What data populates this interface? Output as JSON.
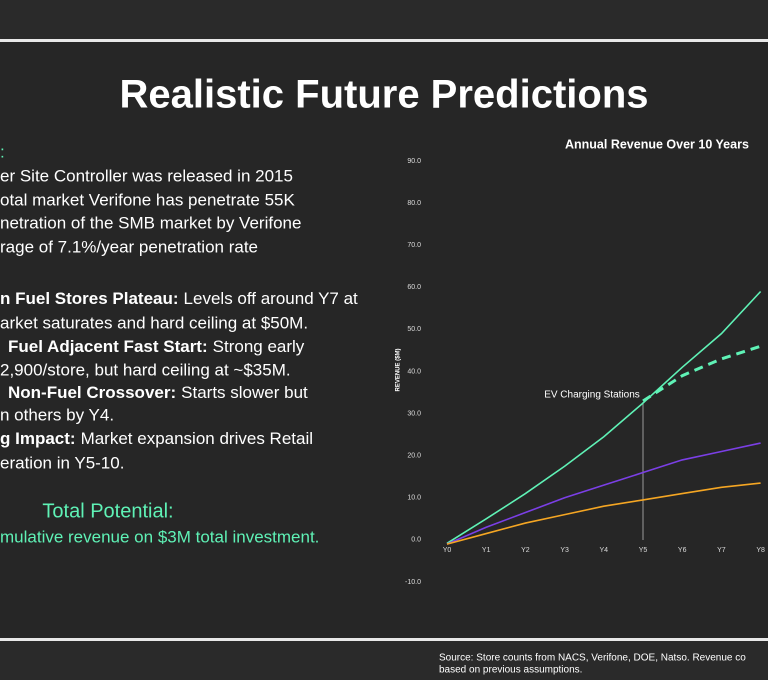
{
  "title": "Realistic Future Predictions",
  "intro": {
    "heading": ":",
    "lines": [
      "er Site Controller was released in 2015",
      "otal market Verifone has penetrate 55K",
      "netration of the SMB market by Verifone",
      "rage of 7.1%/year penetration rate"
    ]
  },
  "points": [
    {
      "label": "n Fuel Stores Plateau:",
      "text": "Levels off around Y7 at",
      "continuation": "arket saturates and hard ceiling at $50M."
    },
    {
      "label": "Fuel Adjacent Fast Start:",
      "text": "Strong early",
      "continuation": "2,900/store, but hard ceiling at ~$35M."
    },
    {
      "label": "Non-Fuel Crossover:",
      "text": "Starts slower but",
      "continuation": "n others by Y4."
    },
    {
      "label": "g Impact:",
      "text": "Market expansion drives Retail",
      "continuation": "eration in Y5-10."
    }
  ],
  "total_potential": {
    "heading": "Total Potential:",
    "text": "mulative revenue on $3M total investment."
  },
  "chart_data": {
    "type": "line",
    "title": "Annual Revenue Over 10 Years",
    "y_label": "REVENUE ($M)",
    "annotation": "EV Charging Stations",
    "categories": [
      "Y0",
      "Y1",
      "Y2",
      "Y3",
      "Y4",
      "Y5",
      "Y6",
      "Y7",
      "Y8"
    ],
    "series": [
      {
        "color": "#5ff2b6",
        "style": "solid",
        "values": [
          -0.8,
          5,
          11,
          17.5,
          24.5,
          32.5,
          41,
          49,
          59
        ]
      },
      {
        "color": "#5ff2b6",
        "style": "dashed",
        "values": [
          null,
          null,
          null,
          null,
          null,
          33,
          39,
          43,
          46
        ]
      },
      {
        "color": "#7b3fe6",
        "style": "solid",
        "values": [
          -1,
          3,
          6.5,
          10,
          13,
          16,
          19,
          21,
          23
        ]
      },
      {
        "color": "#f5a623",
        "style": "solid",
        "values": [
          -1,
          1.5,
          4,
          6,
          8,
          9.5,
          11,
          12.5,
          13.5
        ]
      }
    ],
    "ylim": [
      -10,
      90
    ],
    "yticks": [
      {
        "value": -10,
        "label": "-10.0"
      },
      {
        "value": 0,
        "label": "0.0"
      },
      {
        "value": 10,
        "label": "10.0"
      },
      {
        "value": 20,
        "label": "20.0"
      },
      {
        "value": 30,
        "label": "30.0"
      },
      {
        "value": 40,
        "label": "40.0"
      },
      {
        "value": 50,
        "label": "50.0"
      },
      {
        "value": 60,
        "label": "60.0"
      },
      {
        "value": 70,
        "label": "70.0"
      },
      {
        "value": 80,
        "label": "80.0"
      },
      {
        "value": 90,
        "label": "90.0"
      }
    ],
    "grid": false
  },
  "source": [
    "Source: Store counts from NACS, Verifone, DOE, Natso. Revenue co",
    "based on previous assumptions."
  ]
}
